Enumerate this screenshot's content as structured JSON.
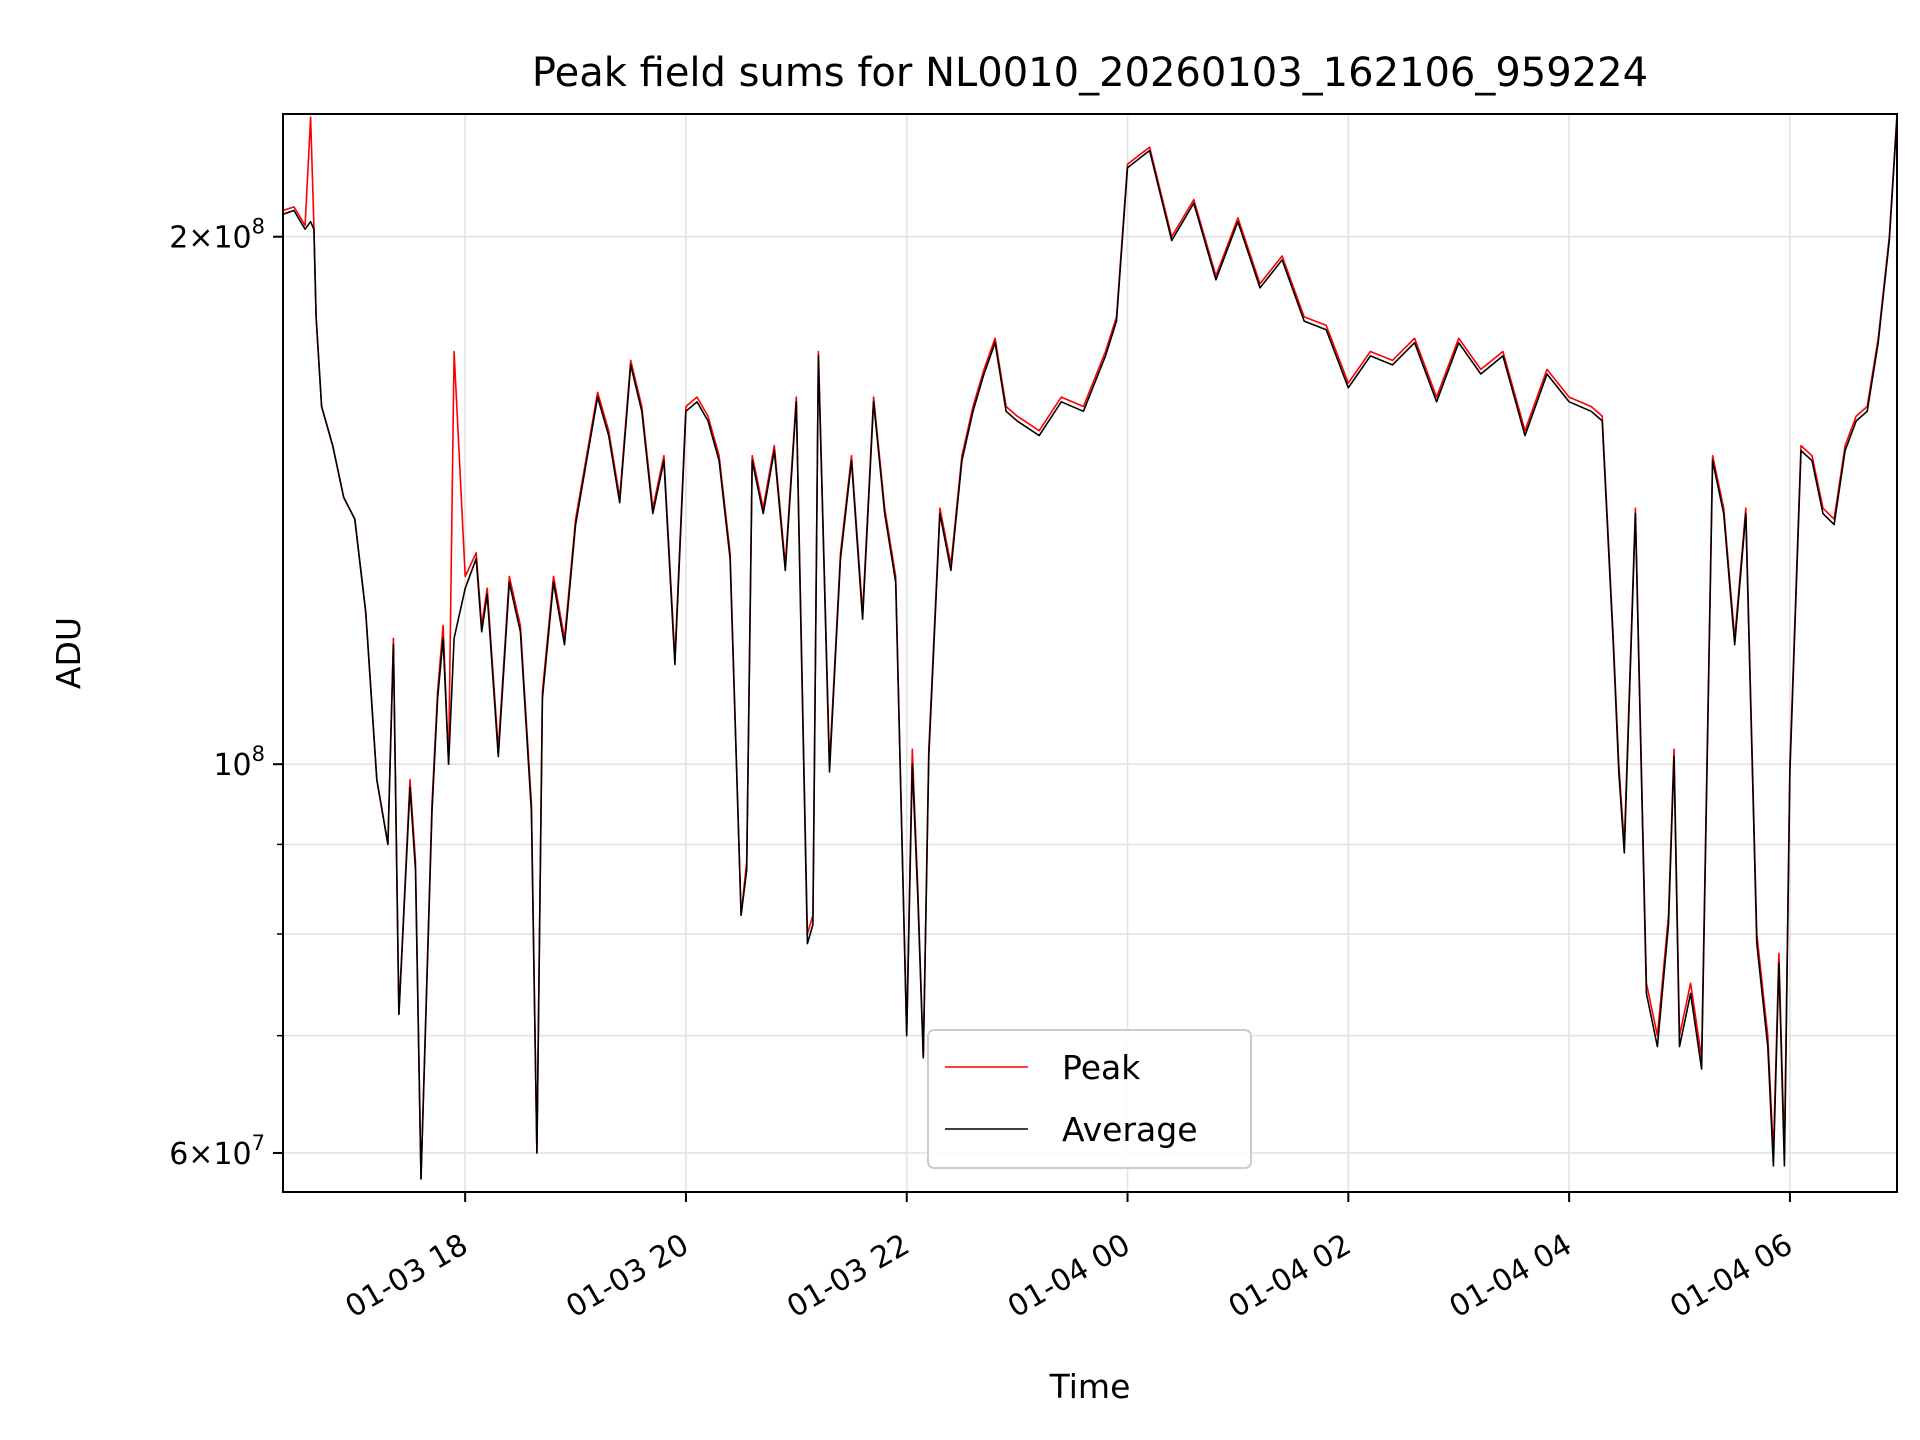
{
  "chart_data": {
    "type": "line",
    "title": "Peak field sums for NL0010_20260103_162106_959224",
    "xlabel": "Time",
    "ylabel": "ADU",
    "yscale": "log",
    "ylim": [
      57000000,
      235000000
    ],
    "xlim_hours": [
      16.35,
      30.97
    ],
    "grid": true,
    "legend_position": "lower center",
    "x_tick_labels": [
      "01-03 18",
      "01-03 20",
      "01-03 22",
      "01-04 00",
      "01-04 02",
      "01-04 04",
      "01-04 06"
    ],
    "x_tick_hours": [
      18,
      20,
      22,
      24,
      26,
      28,
      30
    ],
    "y_tick_labels": [
      "2×10^8",
      "10^8",
      "6×10^7"
    ],
    "y_tick_values": [
      200000000,
      100000000,
      60000000
    ],
    "y_minor_ticks": [
      70000000,
      80000000,
      90000000
    ],
    "series": [
      {
        "name": "Peak",
        "color": "#ff0000",
        "x_hours": [
          16.35,
          16.45,
          16.55,
          16.6,
          16.63,
          16.65,
          16.7,
          16.8,
          16.9,
          17.0,
          17.1,
          17.2,
          17.3,
          17.35,
          17.4,
          17.5,
          17.55,
          17.6,
          17.7,
          17.75,
          17.8,
          17.85,
          17.9,
          18.0,
          18.1,
          18.15,
          18.2,
          18.3,
          18.4,
          18.5,
          18.6,
          18.65,
          18.7,
          18.8,
          18.9,
          19.0,
          19.1,
          19.2,
          19.3,
          19.4,
          19.5,
          19.6,
          19.7,
          19.8,
          19.9,
          20.0,
          20.1,
          20.2,
          20.3,
          20.4,
          20.5,
          20.55,
          20.6,
          20.7,
          20.8,
          20.9,
          21.0,
          21.1,
          21.15,
          21.2,
          21.3,
          21.4,
          21.5,
          21.6,
          21.7,
          21.8,
          21.9,
          22.0,
          22.05,
          22.1,
          22.15,
          22.2,
          22.3,
          22.4,
          22.5,
          22.6,
          22.7,
          22.8,
          22.9,
          23.0,
          23.2,
          23.4,
          23.6,
          23.8,
          23.9,
          24.0,
          24.2,
          24.4,
          24.6,
          24.8,
          25.0,
          25.2,
          25.4,
          25.6,
          25.8,
          26.0,
          26.2,
          26.4,
          26.6,
          26.8,
          27.0,
          27.2,
          27.4,
          27.6,
          27.8,
          28.0,
          28.2,
          28.3,
          28.4,
          28.45,
          28.5,
          28.6,
          28.7,
          28.8,
          28.9,
          28.95,
          29.0,
          29.1,
          29.2,
          29.3,
          29.4,
          29.5,
          29.6,
          29.7,
          29.8,
          29.85,
          29.9,
          29.95,
          30.0,
          30.1,
          30.2,
          30.3,
          30.4,
          30.5,
          30.6,
          30.7,
          30.8,
          30.9,
          30.97
        ],
        "y": [
          207000000,
          208000000,
          203000000,
          234000000,
          203000000,
          180000000,
          160000000,
          152000000,
          142000000,
          138000000,
          122000000,
          98000000,
          90000000,
          118000000,
          72000000,
          98000000,
          88000000,
          58000000,
          95000000,
          110000000,
          120000000,
          100000000,
          172000000,
          128000000,
          132000000,
          120000000,
          126000000,
          102000000,
          128000000,
          120000000,
          95000000,
          60000000,
          110000000,
          128000000,
          118000000,
          138000000,
          150000000,
          163000000,
          155000000,
          142000000,
          170000000,
          160000000,
          140000000,
          150000000,
          115000000,
          160000000,
          162000000,
          158000000,
          150000000,
          132000000,
          82000000,
          88000000,
          150000000,
          140000000,
          152000000,
          130000000,
          162000000,
          80000000,
          82000000,
          172000000,
          100000000,
          132000000,
          150000000,
          122000000,
          162000000,
          140000000,
          128000000,
          70000000,
          102000000,
          85000000,
          68000000,
          102000000,
          140000000,
          130000000,
          150000000,
          160000000,
          168000000,
          175000000,
          160000000,
          158000000,
          155000000,
          162000000,
          160000000,
          172000000,
          180000000,
          220000000,
          225000000,
          200000000,
          210000000,
          190000000,
          205000000,
          188000000,
          195000000,
          180000000,
          178000000,
          165000000,
          172000000,
          170000000,
          175000000,
          162000000,
          175000000,
          168000000,
          172000000,
          155000000,
          168000000,
          162000000,
          160000000,
          158000000,
          118000000,
          100000000,
          90000000,
          140000000,
          75000000,
          70000000,
          82000000,
          102000000,
          70000000,
          75000000,
          68000000,
          150000000,
          140000000,
          118000000,
          140000000,
          80000000,
          70000000,
          60000000,
          78000000,
          60000000,
          100000000,
          152000000,
          150000000,
          140000000,
          138000000,
          152000000,
          158000000,
          160000000,
          175000000,
          200000000,
          235000000
        ]
      },
      {
        "name": "Average",
        "color": "#000000",
        "x_hours": [
          16.35,
          16.45,
          16.55,
          16.6,
          16.63,
          16.65,
          16.7,
          16.8,
          16.9,
          17.0,
          17.1,
          17.2,
          17.3,
          17.35,
          17.4,
          17.5,
          17.55,
          17.6,
          17.7,
          17.75,
          17.8,
          17.85,
          17.9,
          18.0,
          18.1,
          18.15,
          18.2,
          18.3,
          18.4,
          18.5,
          18.6,
          18.65,
          18.7,
          18.8,
          18.9,
          19.0,
          19.1,
          19.2,
          19.3,
          19.4,
          19.5,
          19.6,
          19.7,
          19.8,
          19.9,
          20.0,
          20.1,
          20.2,
          20.3,
          20.4,
          20.5,
          20.55,
          20.6,
          20.7,
          20.8,
          20.9,
          21.0,
          21.1,
          21.15,
          21.2,
          21.3,
          21.4,
          21.5,
          21.6,
          21.7,
          21.8,
          21.9,
          22.0,
          22.05,
          22.1,
          22.15,
          22.2,
          22.3,
          22.4,
          22.5,
          22.6,
          22.7,
          22.8,
          22.9,
          23.0,
          23.2,
          23.4,
          23.6,
          23.8,
          23.9,
          24.0,
          24.2,
          24.4,
          24.6,
          24.8,
          25.0,
          25.2,
          25.4,
          25.6,
          25.8,
          26.0,
          26.2,
          26.4,
          26.6,
          26.8,
          27.0,
          27.2,
          27.4,
          27.6,
          27.8,
          28.0,
          28.2,
          28.3,
          28.4,
          28.45,
          28.5,
          28.6,
          28.7,
          28.8,
          28.9,
          28.95,
          29.0,
          29.1,
          29.2,
          29.3,
          29.4,
          29.5,
          29.6,
          29.7,
          29.8,
          29.85,
          29.9,
          29.95,
          30.0,
          30.1,
          30.2,
          30.3,
          30.4,
          30.5,
          30.6,
          30.7,
          30.8,
          30.9,
          30.97
        ],
        "y": [
          206000000,
          207000000,
          202000000,
          204000000,
          202000000,
          180000000,
          160000000,
          152000000,
          142000000,
          138000000,
          122000000,
          98000000,
          90000000,
          117000000,
          72000000,
          97000000,
          87000000,
          58000000,
          94000000,
          109000000,
          118000000,
          100000000,
          118000000,
          126000000,
          131000000,
          119000000,
          125000000,
          101000000,
          127000000,
          119000000,
          94000000,
          60000000,
          109000000,
          127000000,
          117000000,
          137000000,
          149000000,
          162000000,
          154000000,
          141000000,
          169000000,
          159000000,
          139000000,
          149000000,
          114000000,
          159000000,
          161000000,
          157000000,
          149000000,
          131000000,
          82000000,
          87000000,
          149000000,
          139000000,
          151000000,
          129000000,
          161000000,
          79000000,
          81000000,
          171000000,
          99000000,
          131000000,
          149000000,
          121000000,
          161000000,
          139000000,
          127000000,
          70000000,
          100000000,
          84000000,
          68000000,
          101000000,
          139000000,
          129000000,
          149000000,
          159000000,
          167000000,
          174000000,
          159000000,
          157000000,
          154000000,
          161000000,
          159000000,
          171000000,
          179000000,
          219000000,
          224000000,
          199000000,
          209000000,
          189000000,
          204000000,
          187000000,
          194000000,
          179000000,
          177000000,
          164000000,
          171000000,
          169000000,
          174000000,
          161000000,
          174000000,
          167000000,
          171000000,
          154000000,
          167000000,
          161000000,
          159000000,
          157000000,
          117000000,
          99000000,
          89000000,
          139000000,
          74000000,
          69000000,
          81000000,
          101000000,
          69000000,
          74000000,
          67000000,
          149000000,
          139000000,
          117000000,
          139000000,
          79000000,
          69000000,
          59000000,
          77000000,
          59000000,
          99000000,
          151000000,
          149000000,
          139000000,
          137000000,
          151000000,
          157000000,
          159000000,
          174000000,
          199000000,
          234000000
        ]
      }
    ]
  }
}
